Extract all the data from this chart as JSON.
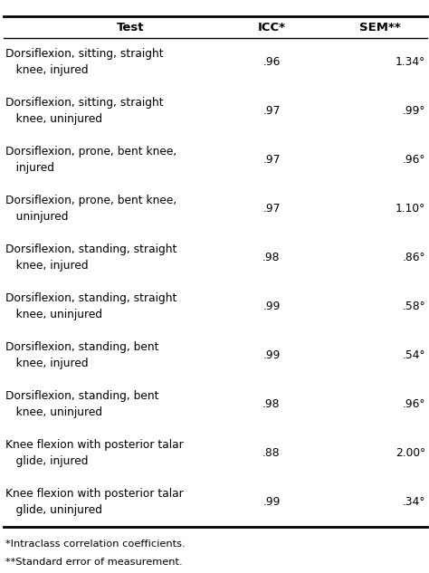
{
  "headers": [
    "Test",
    "ICC*",
    "SEM**"
  ],
  "rows": [
    [
      "Dorsiflexion, sitting, straight\n   knee, injured",
      ".96",
      "1.34°"
    ],
    [
      "Dorsiflexion, sitting, straight\n   knee, uninjured",
      ".97",
      ".99°"
    ],
    [
      "Dorsiflexion, prone, bent knee,\n   injured",
      ".97",
      ".96°"
    ],
    [
      "Dorsiflexion, prone, bent knee,\n   uninjured",
      ".97",
      "1.10°"
    ],
    [
      "Dorsiflexion, standing, straight\n   knee, injured",
      ".98",
      ".86°"
    ],
    [
      "Dorsiflexion, standing, straight\n   knee, uninjured",
      ".99",
      ".58°"
    ],
    [
      "Dorsiflexion, standing, bent\n   knee, injured",
      ".99",
      ".54°"
    ],
    [
      "Dorsiflexion, standing, bent\n   knee, uninjured",
      ".98",
      ".96°"
    ],
    [
      "Knee flexion with posterior talar\n   glide, injured",
      ".88",
      "2.00°"
    ],
    [
      "Knee flexion with posterior talar\n   glide, uninjured",
      ".99",
      ".34°"
    ]
  ],
  "footnotes": [
    "*Intraclass correlation coefficients.",
    "**Standard error of measurement."
  ],
  "bg_color": "#ffffff",
  "text_color": "#000000",
  "font_size": 8.8,
  "header_font_size": 9.5,
  "fig_width": 4.74,
  "fig_height": 6.33,
  "dpi": 100
}
